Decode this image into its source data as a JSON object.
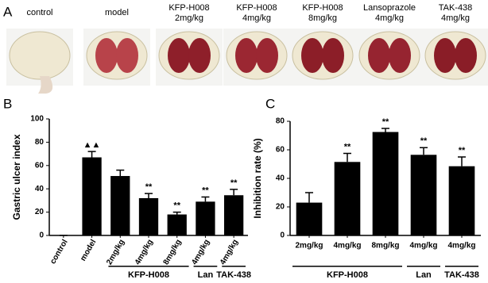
{
  "panel_labels": [
    "A",
    "B",
    "C"
  ],
  "photos": {
    "labels": [
      [
        "control"
      ],
      [
        "model"
      ],
      [
        "KFP-H008",
        "2mg/kg"
      ],
      [
        "KFP-H008",
        "4mg/kg"
      ],
      [
        "KFP-H008",
        "8mg/kg"
      ],
      [
        "Lansoprazole",
        "4mg/kg"
      ],
      [
        "TAK-438",
        "4mg/kg"
      ]
    ]
  },
  "chart_data": [
    {
      "type": "bar",
      "y_label": "Gastric ulcer index",
      "color": "#000000",
      "categories": [
        "control",
        "model",
        "2mg/kg",
        "4mg/kg",
        "8mg/kg",
        "4mg/kg",
        "4mg/kg"
      ],
      "values": [
        0,
        67,
        51,
        32,
        18,
        29,
        34.5
      ],
      "errors": [
        0,
        5,
        5,
        4,
        2,
        4,
        5
      ],
      "annotations": [
        null,
        "▲▲",
        null,
        "**",
        "**",
        "**",
        "**"
      ],
      "groups": [
        null,
        null,
        "KFP-H008",
        "KFP-H008",
        "KFP-H008",
        "Lan",
        "TAK-438"
      ],
      "rotate_labels": true,
      "ylim": [
        0,
        100
      ],
      "yticks": [
        0,
        20,
        40,
        60,
        80,
        100
      ]
    },
    {
      "type": "bar",
      "y_label": "Inhibition rate (%)",
      "color": "#000000",
      "categories": [
        "2mg/kg",
        "4mg/kg",
        "8mg/kg",
        "4mg/kg",
        "4mg/kg"
      ],
      "values": [
        23,
        51.5,
        72.5,
        56.5,
        48.5
      ],
      "errors": [
        7,
        6,
        2.5,
        5,
        6.5
      ],
      "annotations": [
        null,
        "**",
        "**",
        "**",
        "**"
      ],
      "groups": [
        "KFP-H008",
        "KFP-H008",
        "KFP-H008",
        "Lan",
        "TAK-438"
      ],
      "rotate_labels": false,
      "ylim": [
        0,
        80
      ],
      "yticks": [
        0,
        20,
        40,
        60,
        80
      ]
    }
  ]
}
